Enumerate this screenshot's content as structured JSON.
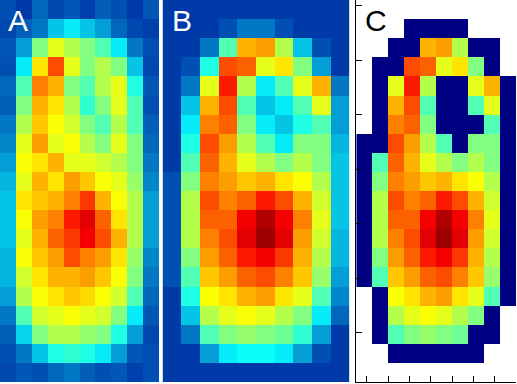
{
  "chart_data": [
    {
      "type": "heatmap",
      "title": "A",
      "color": "Jet",
      "zlim": [
        0,
        1
      ],
      "tick_labels": false,
      "z": [
        [
          0.15,
          0.12,
          0.18,
          0.14,
          0.16,
          0.13,
          0.17,
          0.15,
          0.12,
          0.16
        ],
        [
          0.14,
          0.17,
          0.2,
          0.3,
          0.35,
          0.3,
          0.25,
          0.18,
          0.14,
          0.13
        ],
        [
          0.16,
          0.25,
          0.5,
          0.6,
          0.55,
          0.5,
          0.45,
          0.35,
          0.2,
          0.15
        ],
        [
          0.15,
          0.35,
          0.65,
          0.8,
          0.6,
          0.5,
          0.55,
          0.5,
          0.3,
          0.14
        ],
        [
          0.18,
          0.45,
          0.75,
          0.7,
          0.5,
          0.45,
          0.55,
          0.6,
          0.4,
          0.16
        ],
        [
          0.17,
          0.5,
          0.7,
          0.65,
          0.55,
          0.42,
          0.5,
          0.6,
          0.45,
          0.15
        ],
        [
          0.2,
          0.55,
          0.68,
          0.62,
          0.58,
          0.5,
          0.45,
          0.55,
          0.45,
          0.17
        ],
        [
          0.22,
          0.6,
          0.72,
          0.6,
          0.62,
          0.55,
          0.5,
          0.6,
          0.5,
          0.18
        ],
        [
          0.25,
          0.62,
          0.65,
          0.7,
          0.6,
          0.6,
          0.58,
          0.55,
          0.5,
          0.2
        ],
        [
          0.28,
          0.6,
          0.7,
          0.65,
          0.72,
          0.68,
          0.62,
          0.6,
          0.52,
          0.22
        ],
        [
          0.3,
          0.65,
          0.68,
          0.7,
          0.75,
          0.82,
          0.7,
          0.62,
          0.55,
          0.25
        ],
        [
          0.3,
          0.62,
          0.72,
          0.75,
          0.85,
          0.9,
          0.78,
          0.65,
          0.55,
          0.25
        ],
        [
          0.3,
          0.6,
          0.7,
          0.78,
          0.82,
          0.88,
          0.8,
          0.7,
          0.55,
          0.25
        ],
        [
          0.28,
          0.62,
          0.68,
          0.72,
          0.8,
          0.75,
          0.72,
          0.65,
          0.52,
          0.22
        ],
        [
          0.28,
          0.58,
          0.65,
          0.7,
          0.7,
          0.72,
          0.68,
          0.62,
          0.5,
          0.2
        ],
        [
          0.25,
          0.55,
          0.62,
          0.65,
          0.68,
          0.66,
          0.62,
          0.58,
          0.45,
          0.18
        ],
        [
          0.2,
          0.45,
          0.58,
          0.6,
          0.62,
          0.6,
          0.58,
          0.5,
          0.35,
          0.16
        ],
        [
          0.17,
          0.32,
          0.5,
          0.55,
          0.55,
          0.52,
          0.5,
          0.4,
          0.25,
          0.14
        ],
        [
          0.15,
          0.2,
          0.3,
          0.4,
          0.42,
          0.4,
          0.35,
          0.25,
          0.16,
          0.15
        ],
        [
          0.14,
          0.16,
          0.15,
          0.18,
          0.2,
          0.17,
          0.15,
          0.16,
          0.13,
          0.15
        ]
      ]
    },
    {
      "type": "heatmap",
      "title": "B",
      "color": "Jet",
      "zlim": [
        0,
        1
      ],
      "tick_labels": false,
      "z": [
        [
          0.12,
          0.12,
          0.12,
          0.12,
          0.12,
          0.12,
          0.12,
          0.12,
          0.12,
          0.12
        ],
        [
          0.12,
          0.12,
          0.12,
          0.15,
          0.2,
          0.2,
          0.15,
          0.12,
          0.12,
          0.12
        ],
        [
          0.12,
          0.12,
          0.2,
          0.45,
          0.7,
          0.72,
          0.55,
          0.3,
          0.15,
          0.12
        ],
        [
          0.12,
          0.15,
          0.4,
          0.8,
          0.78,
          0.6,
          0.65,
          0.5,
          0.25,
          0.12
        ],
        [
          0.12,
          0.2,
          0.6,
          0.85,
          0.55,
          0.35,
          0.45,
          0.6,
          0.7,
          0.2
        ],
        [
          0.12,
          0.3,
          0.7,
          0.8,
          0.45,
          0.3,
          0.35,
          0.45,
          0.6,
          0.25
        ],
        [
          0.12,
          0.35,
          0.75,
          0.78,
          0.5,
          0.35,
          0.3,
          0.4,
          0.45,
          0.25
        ],
        [
          0.12,
          0.4,
          0.8,
          0.72,
          0.55,
          0.45,
          0.35,
          0.5,
          0.5,
          0.28
        ],
        [
          0.12,
          0.45,
          0.78,
          0.7,
          0.6,
          0.55,
          0.5,
          0.55,
          0.5,
          0.3
        ],
        [
          0.15,
          0.5,
          0.75,
          0.72,
          0.68,
          0.7,
          0.65,
          0.62,
          0.55,
          0.3
        ],
        [
          0.15,
          0.55,
          0.8,
          0.75,
          0.78,
          0.85,
          0.8,
          0.7,
          0.58,
          0.3
        ],
        [
          0.15,
          0.55,
          0.78,
          0.78,
          0.88,
          0.95,
          0.88,
          0.75,
          0.6,
          0.3
        ],
        [
          0.15,
          0.55,
          0.75,
          0.8,
          0.9,
          0.97,
          0.9,
          0.72,
          0.58,
          0.28
        ],
        [
          0.15,
          0.5,
          0.72,
          0.78,
          0.85,
          0.88,
          0.82,
          0.7,
          0.55,
          0.28
        ],
        [
          0.15,
          0.45,
          0.68,
          0.72,
          0.78,
          0.8,
          0.75,
          0.68,
          0.52,
          0.25
        ],
        [
          0.12,
          0.4,
          0.62,
          0.65,
          0.7,
          0.72,
          0.65,
          0.6,
          0.45,
          0.22
        ],
        [
          0.12,
          0.3,
          0.55,
          0.6,
          0.62,
          0.6,
          0.55,
          0.5,
          0.35,
          0.18
        ],
        [
          0.12,
          0.2,
          0.45,
          0.5,
          0.52,
          0.5,
          0.48,
          0.42,
          0.25,
          0.12
        ],
        [
          0.12,
          0.12,
          0.25,
          0.35,
          0.38,
          0.38,
          0.35,
          0.25,
          0.15,
          0.12
        ],
        [
          0.12,
          0.12,
          0.12,
          0.12,
          0.12,
          0.12,
          0.12,
          0.12,
          0.12,
          0.12
        ]
      ]
    },
    {
      "type": "heatmap",
      "title": "C",
      "color": "Jet",
      "zlim": [
        0,
        1
      ],
      "tick_labels": false,
      "xlim": [
        0,
        30
      ],
      "xticks": [
        2,
        6,
        10,
        14,
        18,
        22,
        26
      ],
      "ylim": [
        0,
        70
      ],
      "yticks": [
        1,
        11,
        21,
        31,
        41,
        51,
        61
      ],
      "x": [
        1.5,
        4.5,
        7.5,
        10.5,
        13.5,
        16.5,
        19.5,
        22.5,
        25.5,
        28.5
      ],
      "y": [
        1.75,
        5.25,
        8.75,
        12.25,
        15.75,
        19.25,
        22.75,
        26.25,
        29.75,
        33.25,
        36.75,
        40.25,
        43.75,
        47.25,
        50.75,
        54.25,
        57.75,
        61.25,
        64.75,
        68.25
      ],
      "z": [
        [
          null,
          null,
          null,
          null,
          null,
          null,
          null,
          null,
          null,
          null
        ],
        [
          null,
          null,
          null,
          0,
          0,
          0,
          0,
          null,
          null,
          null
        ],
        [
          null,
          null,
          0,
          0,
          0.7,
          0.72,
          0.55,
          0,
          0,
          null
        ],
        [
          null,
          0,
          0,
          0.8,
          0.78,
          0.6,
          0.65,
          0.5,
          0,
          null
        ],
        [
          null,
          0,
          0.6,
          0.85,
          0.55,
          0,
          0,
          0.6,
          0.7,
          0
        ],
        [
          null,
          0,
          0.7,
          0.8,
          0.45,
          0,
          0,
          0.45,
          0.6,
          0
        ],
        [
          null,
          0,
          0.75,
          0.78,
          0.5,
          0,
          0,
          0,
          0.45,
          0
        ],
        [
          0,
          0,
          0.8,
          0.72,
          0.55,
          0.45,
          0,
          0.5,
          0.5,
          0
        ],
        [
          0,
          0.45,
          0.78,
          0.7,
          0.6,
          0.55,
          0.5,
          0.55,
          0.5,
          0
        ],
        [
          0,
          0.5,
          0.75,
          0.72,
          0.68,
          0.7,
          0.65,
          0.62,
          0.55,
          0
        ],
        [
          0,
          0.55,
          0.8,
          0.75,
          0.78,
          0.85,
          0.8,
          0.7,
          0.58,
          0
        ],
        [
          0,
          0.55,
          0.78,
          0.78,
          0.88,
          0.95,
          0.88,
          0.75,
          0.6,
          0
        ],
        [
          0,
          0.55,
          0.75,
          0.8,
          0.9,
          0.97,
          0.9,
          0.72,
          0.58,
          0
        ],
        [
          0,
          0.5,
          0.72,
          0.78,
          0.85,
          0.88,
          0.82,
          0.7,
          0.55,
          0
        ],
        [
          0,
          0.45,
          0.68,
          0.72,
          0.78,
          0.8,
          0.75,
          0.68,
          0.52,
          0
        ],
        [
          null,
          0,
          0.62,
          0.65,
          0.7,
          0.72,
          0.65,
          0.6,
          0.45,
          0
        ],
        [
          null,
          0,
          0.55,
          0.6,
          0.62,
          0.6,
          0.55,
          0.5,
          0,
          null
        ],
        [
          null,
          0,
          0.45,
          0.5,
          0.52,
          0.5,
          0.48,
          0,
          0,
          null
        ],
        [
          null,
          null,
          0,
          0,
          0,
          0,
          0,
          0,
          null,
          null
        ],
        [
          null,
          null,
          null,
          null,
          null,
          null,
          null,
          null,
          null,
          null
        ]
      ]
    }
  ]
}
